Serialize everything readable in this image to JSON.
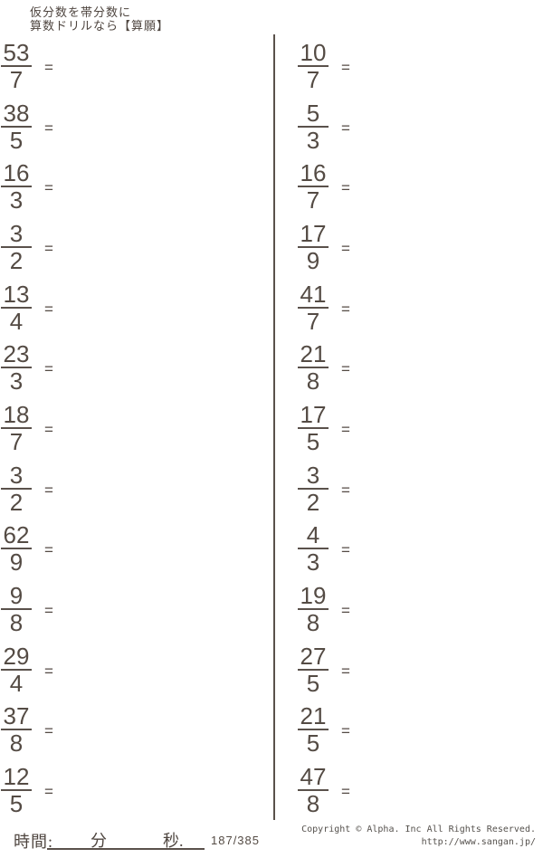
{
  "header": {
    "line1": "仮分数を帯分数に",
    "line2": "算数ドリルなら【算願】"
  },
  "worksheet": {
    "equals_label": "=",
    "columns": {
      "left": [
        {
          "numerator": "53",
          "denominator": "7"
        },
        {
          "numerator": "38",
          "denominator": "5"
        },
        {
          "numerator": "16",
          "denominator": "3"
        },
        {
          "numerator": "3",
          "denominator": "2"
        },
        {
          "numerator": "13",
          "denominator": "4"
        },
        {
          "numerator": "23",
          "denominator": "3"
        },
        {
          "numerator": "18",
          "denominator": "7"
        },
        {
          "numerator": "3",
          "denominator": "2"
        },
        {
          "numerator": "62",
          "denominator": "9"
        },
        {
          "numerator": "9",
          "denominator": "8"
        },
        {
          "numerator": "29",
          "denominator": "4"
        },
        {
          "numerator": "37",
          "denominator": "8"
        },
        {
          "numerator": "12",
          "denominator": "5"
        }
      ],
      "right": [
        {
          "numerator": "10",
          "denominator": "7"
        },
        {
          "numerator": "5",
          "denominator": "3"
        },
        {
          "numerator": "16",
          "denominator": "7"
        },
        {
          "numerator": "17",
          "denominator": "9"
        },
        {
          "numerator": "41",
          "denominator": "7"
        },
        {
          "numerator": "21",
          "denominator": "8"
        },
        {
          "numerator": "17",
          "denominator": "5"
        },
        {
          "numerator": "3",
          "denominator": "2"
        },
        {
          "numerator": "4",
          "denominator": "3"
        },
        {
          "numerator": "19",
          "denominator": "8"
        },
        {
          "numerator": "27",
          "denominator": "5"
        },
        {
          "numerator": "21",
          "denominator": "5"
        },
        {
          "numerator": "47",
          "denominator": "8"
        }
      ]
    }
  },
  "footer": {
    "time_label": "時間:",
    "minutes_label": "分",
    "seconds_label": "秒.",
    "page_indicator": "187/385",
    "copyright_line1": "Copyright ©  Alpha. Inc All Rights Reserved.",
    "copyright_line2": "http://www.sangan.jp/"
  },
  "colors": {
    "ink": "#564c45",
    "background": "#ffffff"
  }
}
